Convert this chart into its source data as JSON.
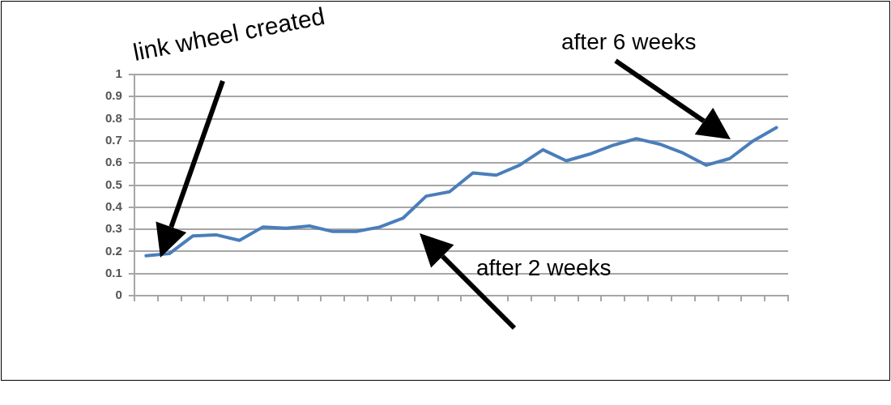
{
  "chart_data": {
    "type": "line",
    "categories": [
      null,
      null,
      null,
      null,
      null,
      null,
      null,
      null,
      null,
      null,
      null,
      null,
      null,
      null,
      null,
      null,
      null,
      null,
      null,
      null,
      null,
      null,
      null,
      null,
      null,
      null,
      null,
      null
    ],
    "series": [
      {
        "color": "#4a7ebb",
        "values": [
          0.18,
          0.19,
          0.27,
          0.275,
          0.25,
          0.31,
          0.305,
          0.315,
          0.29,
          0.29,
          0.31,
          0.35,
          0.45,
          0.47,
          0.555,
          0.545,
          0.59,
          0.66,
          0.61,
          0.64,
          0.68,
          0.71,
          0.685,
          0.645,
          0.59,
          0.62,
          0.7,
          0.76
        ]
      }
    ],
    "ylim": [
      0,
      1
    ],
    "yticks": [
      0,
      0.1,
      0.2,
      0.3,
      0.4,
      0.5,
      0.6,
      0.7,
      0.8,
      0.9,
      1
    ],
    "grid": "y",
    "legend": false,
    "marker": "none",
    "line_style": "solid",
    "annotations": [
      "link wheel created",
      "after 2 weeks",
      "after 6 weeks"
    ]
  }
}
